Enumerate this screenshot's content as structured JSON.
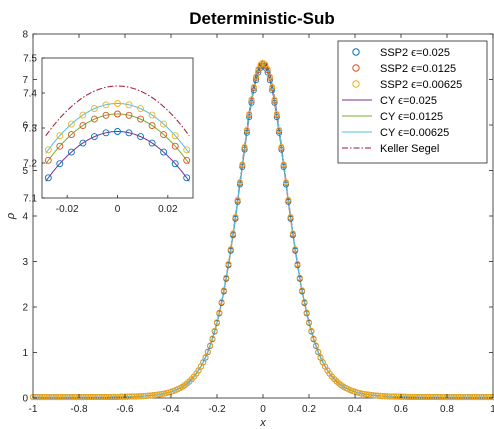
{
  "chart_data": {
    "type": "line",
    "title": "Deterministic-Sub",
    "xlabel": "x",
    "ylabel": "ρ",
    "xlim": [
      -1,
      1
    ],
    "ylim": [
      0,
      8
    ],
    "xticks": [
      "-1",
      "-0.8",
      "-0.6",
      "-0.4",
      "-0.2",
      "0",
      "0.2",
      "0.4",
      "0.6",
      "0.8",
      "1"
    ],
    "yticks": [
      "0",
      "1",
      "2",
      "3",
      "4",
      "5",
      "6",
      "7",
      "8"
    ],
    "legend_position": "top-right",
    "series": [
      {
        "name": "SSP2 ϵ=0.025",
        "style": "marker-circle",
        "color": "#0072BD",
        "peak": 7.29
      },
      {
        "name": "SSP2 ϵ=0.0125",
        "style": "marker-circle",
        "color": "#D95319",
        "peak": 7.34
      },
      {
        "name": "SSP2 ϵ=0.00625",
        "style": "marker-circle",
        "color": "#EDB120",
        "peak": 7.37
      },
      {
        "name": "CY ϵ=0.025",
        "style": "line",
        "color": "#7E2F8E",
        "peak": 7.29
      },
      {
        "name": "CY ϵ=0.0125",
        "style": "line",
        "color": "#77AC30",
        "peak": 7.34
      },
      {
        "name": "CY ϵ=0.00625",
        "style": "line",
        "color": "#4DBEEE",
        "peak": 7.37
      },
      {
        "name": "Keller Segel",
        "style": "dashdot",
        "color": "#A2142F",
        "peak": 7.42
      }
    ],
    "profile": {
      "x": [
        -1,
        -0.8,
        -0.6,
        -0.5,
        -0.4,
        -0.3,
        -0.2,
        -0.15,
        -0.1,
        -0.05,
        0,
        0.05,
        0.1,
        0.15,
        0.2,
        0.3,
        0.4,
        0.5,
        0.6,
        0.8,
        1
      ],
      "y": [
        0.02,
        0.06,
        0.22,
        0.45,
        0.95,
        2.0,
        3.85,
        5.0,
        6.1,
        7.0,
        7.3,
        7.0,
        6.1,
        5.0,
        3.85,
        2.0,
        0.95,
        0.45,
        0.22,
        0.06,
        0.02
      ]
    },
    "inset": {
      "xlim": [
        -0.03,
        0.03
      ],
      "ylim": [
        7.1,
        7.5
      ],
      "xticks": [
        "-0.02",
        "0",
        "0.02"
      ],
      "yticks": [
        "7.1",
        "7.2",
        "7.3",
        "7.4",
        "7.5"
      ]
    }
  }
}
